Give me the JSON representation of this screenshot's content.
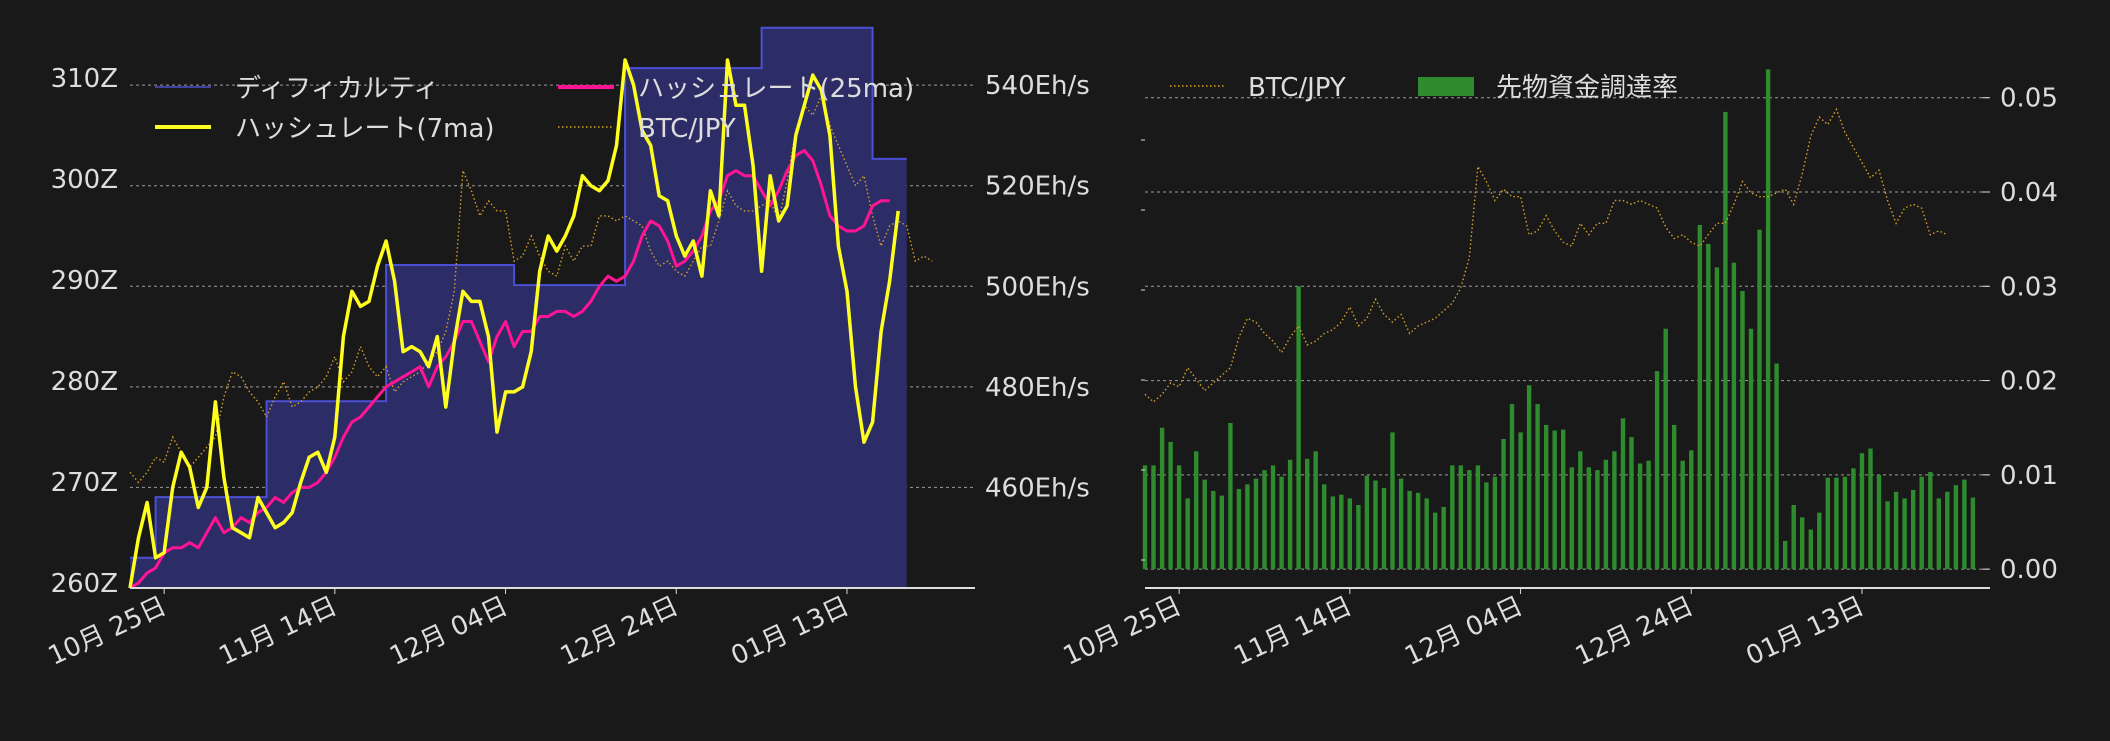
{
  "colors": {
    "background": "#191919",
    "difficulty_line": "#4a4fd4",
    "difficulty_fill": "#2c2d66",
    "hashrate_7ma": "#ffff1f",
    "hashrate_25ma": "#ff1493",
    "btc_jpy": "#d4a02a",
    "funding_rate": "#2e8b2e",
    "grid": "#bbbbbb",
    "axis": "#dddddd"
  },
  "chart_data": [
    {
      "type": "line",
      "x_range": [
        "2022-10-21",
        "2023-01-28"
      ],
      "x_ticks": [
        {
          "date": "2022-10-25",
          "label": "10月 25日"
        },
        {
          "date": "2022-11-14",
          "label": "11月 14日"
        },
        {
          "date": "2022-12-04",
          "label": "12月 04日"
        },
        {
          "date": "2022-12-24",
          "label": "12月 24日"
        },
        {
          "date": "2023-01-13",
          "label": "01月 13日"
        }
      ],
      "left_axis": {
        "range": [
          259.5,
          311.8
        ],
        "ticks": [
          {
            "value": 260,
            "label": "260Z"
          },
          {
            "value": 270,
            "label": "270Z"
          },
          {
            "value": 280,
            "label": "280Z"
          },
          {
            "value": 290,
            "label": "290Z"
          },
          {
            "value": 300,
            "label": "300Z"
          },
          {
            "value": 310,
            "label": "310Z"
          }
        ]
      },
      "right_axis": {
        "range": [
          440,
          545
        ],
        "grid": true,
        "ticks": [
          {
            "value": 460,
            "label": "460Eh/s"
          },
          {
            "value": 480,
            "label": "480Eh/s"
          },
          {
            "value": 500,
            "label": "500Eh/s"
          },
          {
            "value": 520,
            "label": "520Eh/s"
          },
          {
            "value": 540,
            "label": "540Eh/s"
          }
        ]
      },
      "legend": [
        {
          "key": "difficulty",
          "label": "ディフィカルティ"
        },
        {
          "key": "hashrate_25ma",
          "label": "ハッシュレート(25ma)"
        },
        {
          "key": "hashrate_7ma",
          "label": "ハッシュレート(7ma)"
        },
        {
          "key": "btc",
          "label": "BTC/JPY"
        }
      ],
      "difficulty": {
        "label": "ディフィカルティ",
        "axis": "left",
        "steps": [
          {
            "from": "2022-10-21",
            "value": 262.5
          },
          {
            "from": "2022-10-24",
            "value": 268.5
          },
          {
            "from": "2022-11-06",
            "value": 278.0
          },
          {
            "from": "2022-11-20",
            "value": 291.5
          },
          {
            "from": "2022-12-05",
            "value": 289.5
          },
          {
            "from": "2022-12-18",
            "value": 311.0
          },
          {
            "from": "2023-01-03",
            "value": 315.0
          },
          {
            "from": "2023-01-16",
            "value": 302.0
          }
        ],
        "end": "2023-01-20"
      },
      "hashrate_7ma": {
        "label": "ハッシュレート(7ma)",
        "axis": "right",
        "start": "2022-10-21",
        "values": [
          440,
          450,
          457,
          446,
          447,
          460,
          467,
          464,
          456,
          460,
          477,
          462,
          452,
          451,
          450,
          458,
          455,
          452,
          453,
          455,
          461,
          466,
          467,
          463,
          470,
          490,
          499,
          496,
          497,
          504,
          509,
          501,
          487,
          488,
          487,
          484,
          490,
          476,
          489,
          499,
          497,
          497,
          490,
          471,
          479,
          479,
          480,
          487,
          503,
          510,
          507,
          510,
          514,
          522,
          520,
          519,
          521,
          528,
          545,
          540,
          531,
          528,
          518,
          517,
          510,
          506,
          509,
          502,
          519,
          514,
          545,
          536,
          536,
          524,
          503,
          522,
          513,
          516,
          530,
          536,
          542,
          539,
          530,
          508,
          499,
          480,
          469,
          473,
          491,
          501,
          515
        ]
      },
      "hashrate_25ma": {
        "label": "ハッシュレート(25ma)",
        "axis": "right",
        "start": "2022-10-21",
        "values": [
          440,
          441,
          443,
          444,
          447,
          448,
          448,
          449,
          448,
          451,
          454,
          451,
          452,
          454,
          453,
          455,
          456,
          458,
          457,
          459,
          460,
          460,
          461,
          463,
          466,
          470,
          473,
          474,
          476,
          478,
          480,
          481,
          482,
          483,
          484,
          480,
          484,
          486,
          489,
          493,
          493,
          489,
          485,
          490,
          493,
          488,
          491,
          491,
          494,
          494,
          495,
          495,
          494,
          495,
          497,
          500,
          502,
          501,
          502,
          505,
          510,
          513,
          512,
          509,
          504,
          505,
          507,
          510,
          515,
          517,
          522,
          523,
          522,
          522,
          519,
          516,
          519,
          523,
          526,
          527,
          525,
          520,
          514,
          512,
          511,
          511,
          512,
          516,
          517,
          517
        ]
      },
      "btc": {
        "label": "BTC/JPY",
        "axis": "right",
        "start": "2022-10-21",
        "values": [
          463,
          461,
          463,
          466,
          465,
          470,
          467,
          464,
          466,
          468,
          470,
          478,
          483,
          482,
          479,
          477,
          474,
          478,
          481,
          476,
          477,
          479,
          480,
          482,
          486,
          481,
          483,
          488,
          484,
          482,
          484,
          479,
          481,
          482,
          483,
          485,
          487,
          491,
          499,
          523,
          519,
          514,
          517,
          515,
          515,
          505,
          506,
          510,
          506,
          503,
          502,
          508,
          505,
          508,
          508,
          514,
          514,
          513,
          514,
          513,
          512,
          507,
          504,
          505,
          503,
          502,
          505,
          508,
          508,
          513,
          519,
          516,
          515,
          515,
          516,
          517,
          513,
          521,
          531,
          536,
          534,
          538,
          532,
          528,
          524,
          520,
          522,
          514,
          508,
          512,
          513,
          512,
          505,
          506,
          505
        ]
      }
    },
    {
      "type": "bar",
      "x_range": [
        "2022-10-21",
        "2023-01-28"
      ],
      "x_ticks": [
        {
          "date": "2022-10-25",
          "label": "10月 25日"
        },
        {
          "date": "2022-11-14",
          "label": "11月 14日"
        },
        {
          "date": "2022-12-04",
          "label": "12月 04日"
        },
        {
          "date": "2022-12-24",
          "label": "12月 24日"
        },
        {
          "date": "2023-01-13",
          "label": "01月 13日"
        }
      ],
      "right_axis": {
        "range": [
          -0.002,
          0.054
        ],
        "grid": true,
        "ticks": [
          {
            "value": 0.0,
            "label": "0.00"
          },
          {
            "value": 0.01,
            "label": "0.01"
          },
          {
            "value": 0.02,
            "label": "0.02"
          },
          {
            "value": 0.03,
            "label": "0.03"
          },
          {
            "value": 0.04,
            "label": "0.04"
          },
          {
            "value": 0.05,
            "label": "0.05"
          }
        ]
      },
      "legend": [
        {
          "key": "btc",
          "label": "BTC/JPY"
        },
        {
          "key": "funding",
          "label": "先物資金調達率"
        }
      ],
      "funding": {
        "label": "先物資金調達率",
        "start": "2022-10-21",
        "values": [
          0.011,
          0.011,
          0.015,
          0.0135,
          0.011,
          0.0075,
          0.0125,
          0.0095,
          0.0083,
          0.0078,
          0.0155,
          0.0085,
          0.009,
          0.0096,
          0.0105,
          0.011,
          0.0098,
          0.0116,
          0.03,
          0.0117,
          0.0125,
          0.009,
          0.0077,
          0.0079,
          0.0075,
          0.0068,
          0.0099,
          0.0094,
          0.0086,
          0.0145,
          0.0096,
          0.0083,
          0.0081,
          0.0075,
          0.006,
          0.0066,
          0.011,
          0.011,
          0.0105,
          0.011,
          0.0092,
          0.0098,
          0.0138,
          0.0175,
          0.0145,
          0.0195,
          0.0175,
          0.0153,
          0.0147,
          0.0148,
          0.0108,
          0.0125,
          0.0108,
          0.0105,
          0.0116,
          0.0125,
          0.016,
          0.014,
          0.0112,
          0.0115,
          0.021,
          0.0255,
          0.0153,
          0.0115,
          0.0126,
          0.0365,
          0.0345,
          0.032,
          0.0485,
          0.0325,
          0.0295,
          0.0255,
          0.036,
          0.053,
          0.0218,
          0.003,
          0.0068,
          0.0055,
          0.0042,
          0.006,
          0.0097,
          0.0097,
          0.0098,
          0.0107,
          0.0123,
          0.0128,
          0.01,
          0.0072,
          0.0082,
          0.0075,
          0.0084,
          0.0098,
          0.0103,
          0.0075,
          0.0082,
          0.0089,
          0.0095,
          0.0076
        ]
      },
      "btc": {
        "label": "BTC/JPY",
        "start": "2022-10-21",
        "values": [
          463,
          461,
          463,
          466,
          465,
          470,
          467,
          464,
          466,
          468,
          470,
          478,
          483,
          482,
          479,
          477,
          474,
          478,
          481,
          476,
          477,
          479,
          480,
          482,
          486,
          481,
          483,
          488,
          484,
          482,
          484,
          479,
          481,
          482,
          483,
          485,
          487,
          491,
          499,
          523,
          519,
          514,
          517,
          515,
          515,
          505,
          506,
          510,
          506,
          503,
          502,
          508,
          505,
          508,
          508,
          514,
          514,
          513,
          514,
          513,
          512,
          507,
          504,
          505,
          503,
          502,
          505,
          508,
          508,
          513,
          519,
          516,
          515,
          515,
          516,
          517,
          513,
          521,
          531,
          536,
          534,
          538,
          532,
          528,
          524,
          520,
          522,
          514,
          508,
          512,
          513,
          512,
          505,
          506,
          505
        ]
      }
    }
  ]
}
